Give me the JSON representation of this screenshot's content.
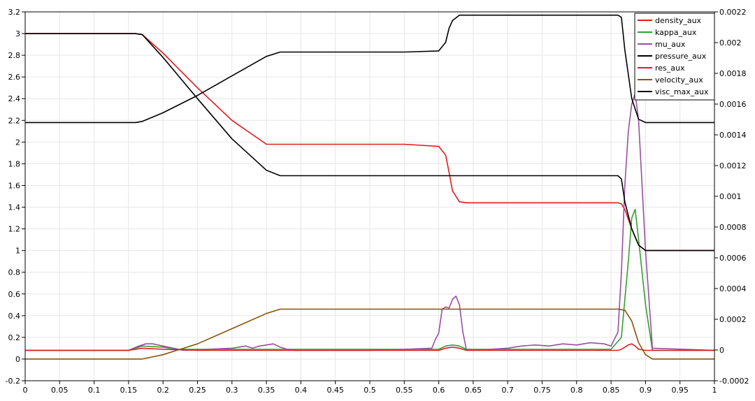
{
  "chart_data": {
    "type": "line",
    "title": "",
    "xlabel": "",
    "ylabel": "",
    "y2label": "",
    "grid": true,
    "legend_placement": "top-right",
    "xlim": [
      0,
      1
    ],
    "ylim": [
      -0.2,
      3.2
    ],
    "y2lim": [
      -0.0002,
      0.0022
    ],
    "x_ticks": [
      "0",
      "0.05",
      "0.1",
      "0.15",
      "0.2",
      "0.25",
      "0.3",
      "0.35",
      "0.4",
      "0.45",
      "0.5",
      "0.55",
      "0.6",
      "0.65",
      "0.7",
      "0.75",
      "0.8",
      "0.85",
      "0.9",
      "0.95",
      "1"
    ],
    "y_ticks": [
      "-0.2",
      "0",
      "0.2",
      "0.4",
      "0.6",
      "0.8",
      "1",
      "1.2",
      "1.4",
      "1.6",
      "1.8",
      "2",
      "2.2",
      "2.4",
      "2.6",
      "2.8",
      "3",
      "3.2"
    ],
    "y2_ticks": [
      "-0.0002",
      "0",
      "0.0002",
      "0.0004",
      "0.0006",
      "0.0008",
      "0.001",
      "0.0012",
      "0.0014",
      "0.0016",
      "0.0018",
      "0.002",
      "0.0022"
    ],
    "series": [
      {
        "name": "density_aux",
        "color": "#e31a1c",
        "axis": "left",
        "x": [
          0,
          0.16,
          0.17,
          0.2,
          0.25,
          0.3,
          0.35,
          0.37,
          0.45,
          0.55,
          0.6,
          0.61,
          0.615,
          0.62,
          0.63,
          0.64,
          0.75,
          0.86,
          0.865,
          0.87,
          0.88,
          0.89,
          0.9,
          0.91,
          1
        ],
        "y": [
          3.0,
          3.0,
          2.99,
          2.82,
          2.5,
          2.2,
          1.98,
          1.98,
          1.98,
          1.98,
          1.96,
          1.88,
          1.72,
          1.55,
          1.45,
          1.44,
          1.44,
          1.44,
          1.43,
          1.38,
          1.2,
          1.05,
          1.0,
          1.0,
          1.0
        ]
      },
      {
        "name": "kappa_aux",
        "color": "#33a02c",
        "axis": "left",
        "x": [
          0,
          0.15,
          0.17,
          0.2,
          0.22,
          0.6,
          0.61,
          0.62,
          0.63,
          0.64,
          0.7,
          0.85,
          0.865,
          0.87,
          0.875,
          0.88,
          0.885,
          0.89,
          0.9,
          0.91,
          1
        ],
        "y": [
          0.08,
          0.08,
          0.12,
          0.11,
          0.09,
          0.09,
          0.12,
          0.13,
          0.12,
          0.09,
          0.09,
          0.09,
          0.2,
          0.55,
          0.9,
          1.3,
          1.38,
          1.1,
          0.5,
          0.08,
          0.08
        ]
      },
      {
        "name": "mu_aux",
        "color": "#984ea3",
        "axis": "left",
        "x": [
          0,
          0.15,
          0.165,
          0.175,
          0.185,
          0.2,
          0.215,
          0.23,
          0.3,
          0.31,
          0.32,
          0.33,
          0.34,
          0.35,
          0.36,
          0.37,
          0.38,
          0.39,
          0.5,
          0.55,
          0.59,
          0.595,
          0.6,
          0.605,
          0.61,
          0.615,
          0.62,
          0.625,
          0.63,
          0.635,
          0.64,
          0.65,
          0.7,
          0.72,
          0.74,
          0.76,
          0.78,
          0.8,
          0.82,
          0.84,
          0.85,
          0.86,
          0.865,
          0.87,
          0.875,
          0.88,
          0.885,
          0.89,
          0.9,
          0.91,
          1
        ],
        "y": [
          0.08,
          0.08,
          0.12,
          0.14,
          0.14,
          0.12,
          0.1,
          0.08,
          0.1,
          0.11,
          0.12,
          0.1,
          0.12,
          0.13,
          0.14,
          0.11,
          0.09,
          0.08,
          0.08,
          0.09,
          0.1,
          0.18,
          0.24,
          0.46,
          0.48,
          0.47,
          0.55,
          0.58,
          0.5,
          0.25,
          0.09,
          0.08,
          0.1,
          0.12,
          0.13,
          0.12,
          0.14,
          0.13,
          0.15,
          0.14,
          0.12,
          0.25,
          0.8,
          1.6,
          2.1,
          2.35,
          2.45,
          2.2,
          1.0,
          0.1,
          0.08
        ]
      },
      {
        "name": "pressure_aux",
        "color": "#000000",
        "axis": "left",
        "x": [
          0,
          0.16,
          0.17,
          0.2,
          0.25,
          0.3,
          0.35,
          0.37,
          0.45,
          0.55,
          0.6,
          0.61,
          0.615,
          0.62,
          0.63,
          0.64,
          0.75,
          0.86,
          0.865,
          0.87,
          0.88,
          0.89,
          0.9,
          0.91,
          1
        ],
        "y": [
          2.18,
          2.18,
          2.19,
          2.27,
          2.43,
          2.61,
          2.79,
          2.83,
          2.83,
          2.83,
          2.84,
          2.92,
          3.05,
          3.12,
          3.17,
          3.17,
          3.17,
          3.17,
          3.15,
          2.85,
          2.4,
          2.21,
          2.18,
          2.18,
          2.18
        ]
      },
      {
        "name": "res_aux",
        "color": "#e31a1c",
        "axis": "left",
        "x": [
          0,
          0.15,
          0.17,
          0.2,
          0.25,
          0.6,
          0.61,
          0.62,
          0.63,
          0.64,
          0.86,
          0.865,
          0.87,
          0.875,
          0.88,
          0.885,
          0.89,
          0.9,
          1
        ],
        "y": [
          0.08,
          0.08,
          0.1,
          0.09,
          0.08,
          0.08,
          0.1,
          0.11,
          0.1,
          0.08,
          0.08,
          0.09,
          0.11,
          0.13,
          0.14,
          0.12,
          0.09,
          0.08,
          0.08
        ]
      },
      {
        "name": "velocity_aux",
        "color": "#8c510a",
        "axis": "left",
        "x": [
          0,
          0.17,
          0.2,
          0.25,
          0.3,
          0.35,
          0.37,
          0.45,
          0.55,
          0.6,
          0.65,
          0.75,
          0.86,
          0.87,
          0.88,
          0.89,
          0.9,
          0.91,
          1
        ],
        "y": [
          0.0,
          0.0,
          0.04,
          0.14,
          0.28,
          0.42,
          0.46,
          0.46,
          0.46,
          0.46,
          0.46,
          0.46,
          0.46,
          0.45,
          0.35,
          0.15,
          0.04,
          0.0,
          0.0
        ]
      },
      {
        "name": "visc_max_aux",
        "color": "#000000",
        "axis": "left",
        "x": [
          0,
          0.16,
          0.17,
          0.2,
          0.25,
          0.3,
          0.35,
          0.37,
          0.45,
          0.55,
          0.6,
          0.65,
          0.75,
          0.86,
          0.865,
          0.87,
          0.88,
          0.89,
          0.9,
          0.91,
          1
        ],
        "y": [
          3.0,
          3.0,
          2.99,
          2.78,
          2.4,
          2.03,
          1.74,
          1.69,
          1.69,
          1.69,
          1.69,
          1.69,
          1.69,
          1.69,
          1.66,
          1.45,
          1.2,
          1.05,
          1.0,
          1.0,
          1.0
        ]
      }
    ]
  }
}
